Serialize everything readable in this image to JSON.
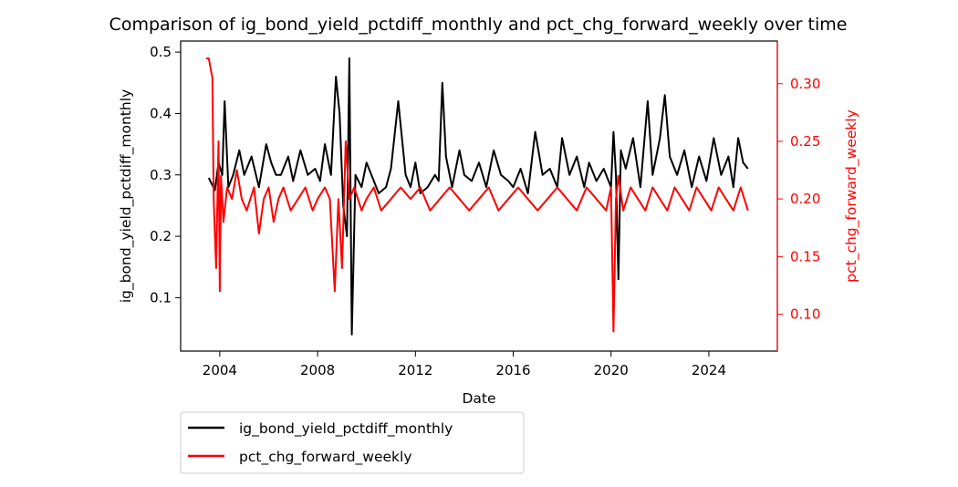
{
  "chart_data": {
    "type": "line",
    "title": "Comparison of ig_bond_yield_pctdiff_monthly and pct_chg_forward_weekly over time",
    "xlabel": "Date",
    "ylabel_left": "ig_bond_yield_pctdiff_monthly",
    "ylabel_right": "pct_chg_forward_weekly",
    "x_ticks": [
      "2004",
      "2008",
      "2012",
      "2016",
      "2020",
      "2024"
    ],
    "xlim": [
      2002.4,
      2026.8
    ],
    "ylim_left": [
      0.013,
      0.518
    ],
    "ylim_right": [
      0.068,
      0.337
    ],
    "y_ticks_left": [
      0.1,
      0.2,
      0.3,
      0.4,
      0.5
    ],
    "y_ticks_right": [
      0.1,
      0.15,
      0.2,
      0.25,
      0.3
    ],
    "y_ticks_left_labels": [
      "0.1",
      "0.2",
      "0.3",
      "0.4",
      "0.5"
    ],
    "y_ticks_right_labels": [
      "0.10",
      "0.15",
      "0.20",
      "0.25",
      "0.30"
    ],
    "grid": false,
    "legend_position": "below-left",
    "series": [
      {
        "name": "ig_bond_yield_pctdiff_monthly",
        "axis": "left",
        "color": "#000000",
        "x": [
          2003.55,
          2003.8,
          2003.95,
          2004.1,
          2004.2,
          2004.35,
          2004.55,
          2004.8,
          2005.0,
          2005.3,
          2005.6,
          2005.9,
          2006.1,
          2006.3,
          2006.5,
          2006.8,
          2007.0,
          2007.3,
          2007.6,
          2007.9,
          2008.1,
          2008.3,
          2008.55,
          2008.75,
          2008.9,
          2009.05,
          2009.2,
          2009.3,
          2009.4,
          2009.55,
          2009.8,
          2010.0,
          2010.2,
          2010.5,
          2010.8,
          2011.0,
          2011.3,
          2011.6,
          2011.8,
          2012.0,
          2012.2,
          2012.5,
          2012.8,
          2012.95,
          2013.1,
          2013.25,
          2013.5,
          2013.8,
          2014.0,
          2014.3,
          2014.6,
          2014.9,
          2015.2,
          2015.5,
          2015.8,
          2016.0,
          2016.3,
          2016.6,
          2016.9,
          2017.2,
          2017.5,
          2017.8,
          2018.0,
          2018.3,
          2018.6,
          2018.9,
          2019.1,
          2019.4,
          2019.7,
          2020.0,
          2020.1,
          2020.2,
          2020.3,
          2020.4,
          2020.6,
          2020.9,
          2021.2,
          2021.5,
          2021.7,
          2022.0,
          2022.2,
          2022.4,
          2022.7,
          2023.0,
          2023.3,
          2023.6,
          2023.9,
          2024.2,
          2024.5,
          2024.8,
          2025.0,
          2025.2,
          2025.4,
          2025.6
        ],
        "values": [
          0.295,
          0.275,
          0.32,
          0.3,
          0.42,
          0.28,
          0.3,
          0.34,
          0.3,
          0.33,
          0.28,
          0.35,
          0.32,
          0.3,
          0.3,
          0.33,
          0.29,
          0.34,
          0.3,
          0.31,
          0.29,
          0.35,
          0.3,
          0.46,
          0.4,
          0.25,
          0.2,
          0.49,
          0.04,
          0.3,
          0.28,
          0.32,
          0.3,
          0.27,
          0.28,
          0.31,
          0.42,
          0.3,
          0.28,
          0.32,
          0.27,
          0.28,
          0.3,
          0.29,
          0.45,
          0.33,
          0.28,
          0.34,
          0.3,
          0.29,
          0.32,
          0.28,
          0.34,
          0.3,
          0.29,
          0.28,
          0.31,
          0.27,
          0.37,
          0.3,
          0.31,
          0.28,
          0.36,
          0.3,
          0.33,
          0.28,
          0.32,
          0.29,
          0.31,
          0.28,
          0.37,
          0.3,
          0.13,
          0.34,
          0.31,
          0.36,
          0.28,
          0.42,
          0.3,
          0.36,
          0.43,
          0.33,
          0.3,
          0.34,
          0.28,
          0.33,
          0.29,
          0.36,
          0.3,
          0.33,
          0.28,
          0.36,
          0.32,
          0.31
        ]
      },
      {
        "name": "pct_chg_forward_weekly",
        "axis": "right",
        "color": "#ff0000",
        "x": [
          2003.45,
          2003.55,
          2003.7,
          2003.75,
          2003.85,
          2003.95,
          2004.0,
          2004.05,
          2004.15,
          2004.3,
          2004.5,
          2004.7,
          2004.9,
          2005.1,
          2005.4,
          2005.6,
          2005.8,
          2006.0,
          2006.2,
          2006.4,
          2006.6,
          2006.9,
          2007.2,
          2007.5,
          2007.8,
          2008.0,
          2008.3,
          2008.5,
          2008.7,
          2008.85,
          2009.0,
          2009.15,
          2009.3,
          2009.5,
          2009.8,
          2010.0,
          2010.3,
          2010.6,
          2011.0,
          2011.4,
          2011.8,
          2012.2,
          2012.6,
          2013.0,
          2013.4,
          2013.8,
          2014.2,
          2014.6,
          2015.0,
          2015.4,
          2015.8,
          2016.2,
          2016.6,
          2017.0,
          2017.4,
          2017.8,
          2018.2,
          2018.6,
          2019.0,
          2019.4,
          2019.8,
          2020.0,
          2020.1,
          2020.2,
          2020.3,
          2020.5,
          2020.8,
          2021.1,
          2021.4,
          2021.7,
          2022.0,
          2022.3,
          2022.6,
          2022.9,
          2023.2,
          2023.5,
          2023.8,
          2024.1,
          2024.4,
          2024.7,
          2025.0,
          2025.3,
          2025.6
        ],
        "values": [
          0.322,
          0.322,
          0.305,
          0.2,
          0.14,
          0.25,
          0.12,
          0.22,
          0.18,
          0.21,
          0.2,
          0.225,
          0.2,
          0.19,
          0.21,
          0.17,
          0.2,
          0.21,
          0.18,
          0.2,
          0.21,
          0.19,
          0.2,
          0.21,
          0.19,
          0.2,
          0.21,
          0.2,
          0.12,
          0.2,
          0.14,
          0.25,
          0.2,
          0.21,
          0.19,
          0.2,
          0.21,
          0.19,
          0.2,
          0.21,
          0.2,
          0.21,
          0.19,
          0.2,
          0.21,
          0.2,
          0.19,
          0.2,
          0.21,
          0.19,
          0.2,
          0.21,
          0.2,
          0.19,
          0.2,
          0.21,
          0.2,
          0.19,
          0.21,
          0.2,
          0.19,
          0.21,
          0.085,
          0.2,
          0.22,
          0.19,
          0.21,
          0.2,
          0.19,
          0.21,
          0.2,
          0.19,
          0.21,
          0.2,
          0.19,
          0.21,
          0.2,
          0.19,
          0.21,
          0.2,
          0.19,
          0.21,
          0.19
        ]
      }
    ]
  }
}
